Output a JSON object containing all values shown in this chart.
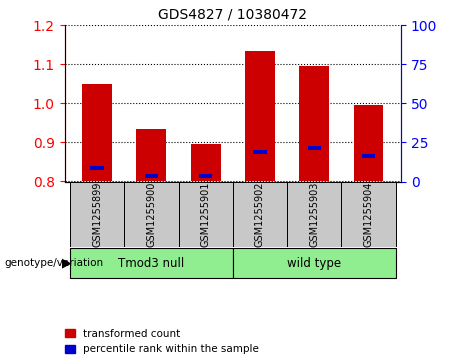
{
  "title": "GDS4827 / 10380472",
  "samples": [
    "GSM1255899",
    "GSM1255900",
    "GSM1255901",
    "GSM1255902",
    "GSM1255903",
    "GSM1255904"
  ],
  "red_tops": [
    1.05,
    0.935,
    0.895,
    1.135,
    1.095,
    0.995
  ],
  "blue_marks": [
    0.835,
    0.815,
    0.815,
    0.875,
    0.887,
    0.865
  ],
  "bar_bottom": 0.8,
  "ylim": [
    0.8,
    1.2
  ],
  "yticks_left": [
    0.8,
    0.9,
    1.0,
    1.1,
    1.2
  ],
  "yticks_right": [
    0,
    25,
    50,
    75,
    100
  ],
  "right_ylim": [
    0,
    100
  ],
  "group1_label": "Tmod3 null",
  "group2_label": "wild type",
  "group1_indices": [
    0,
    1,
    2
  ],
  "group2_indices": [
    3,
    4,
    5
  ],
  "group_color": "#90EE90",
  "bar_color_red": "#CC0000",
  "bar_color_blue": "#0000CC",
  "bg_color": "#C8C8C8",
  "legend_label_red": "transformed count",
  "legend_label_blue": "percentile rank within the sample",
  "genotype_label": "genotype/variation",
  "bar_width": 0.55
}
